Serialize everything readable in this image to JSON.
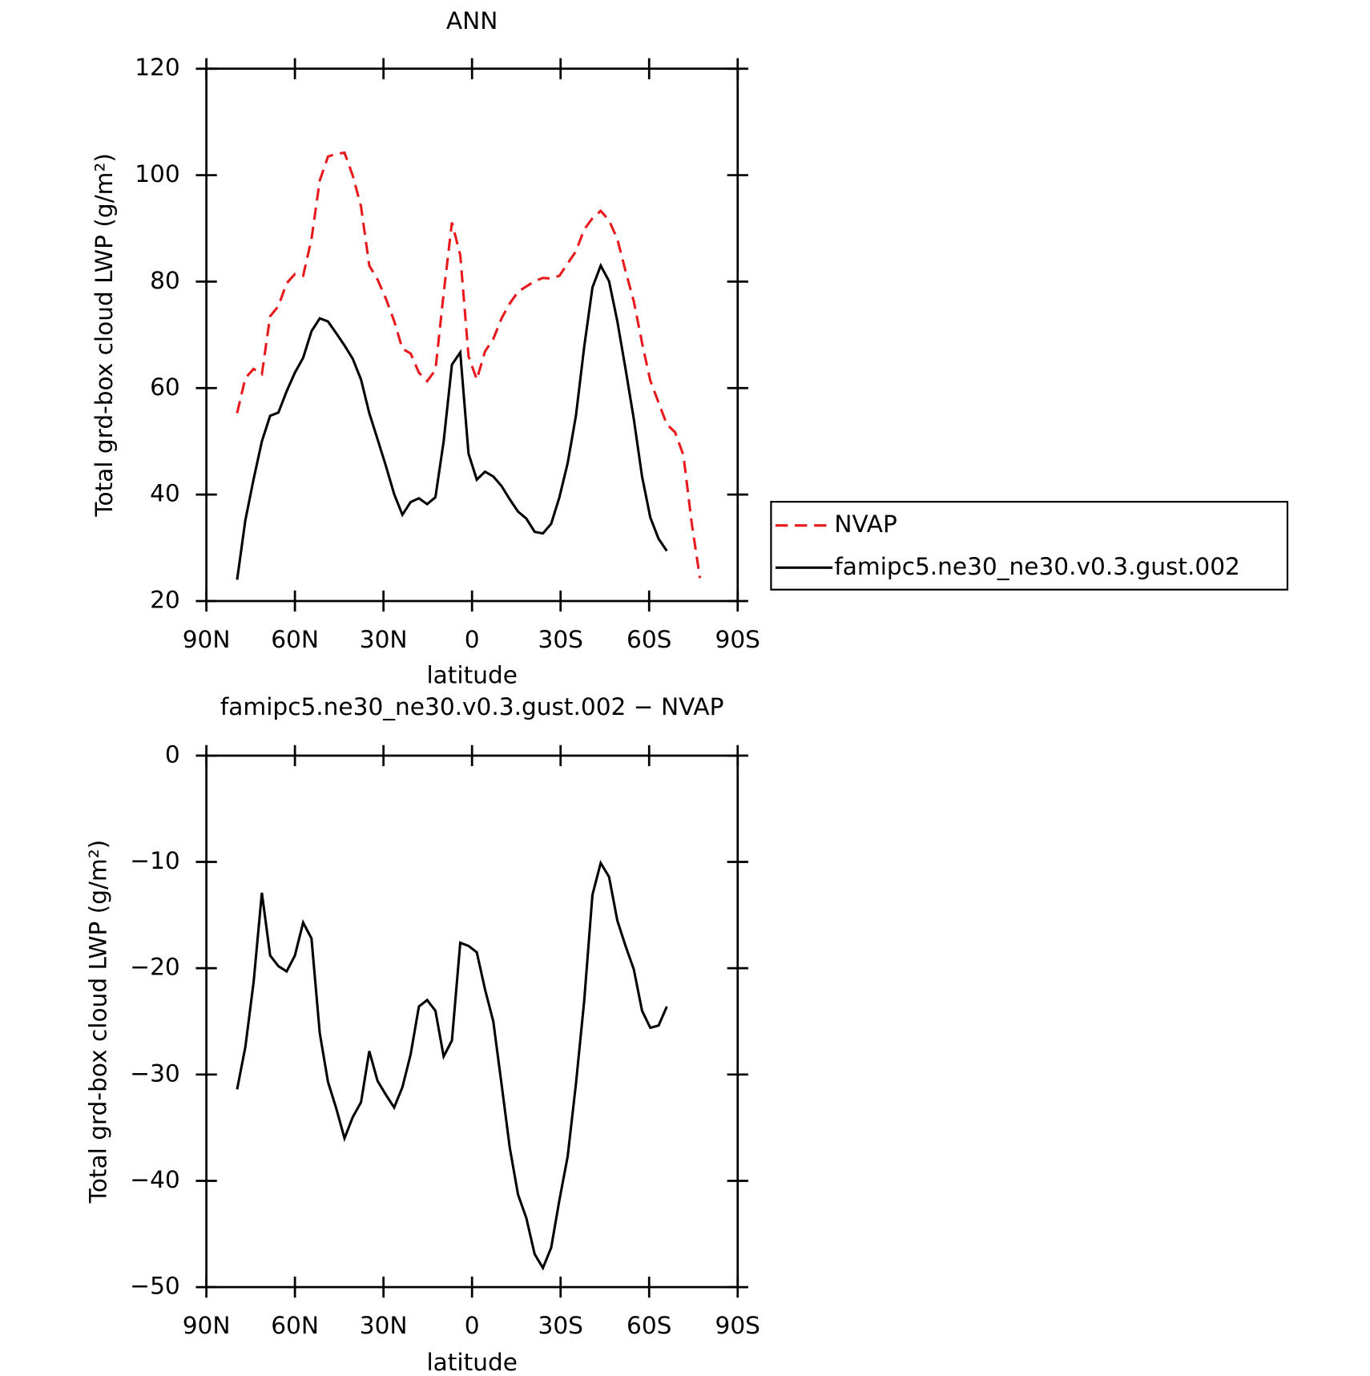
{
  "chart_data": [
    {
      "type": "line",
      "title": "ANN",
      "xlabel": "latitude",
      "ylabel": "Total grd-box cloud LWP (g/m²)",
      "xlim": [
        90,
        -90
      ],
      "xticks": [
        {
          "value": 90,
          "label": "90N"
        },
        {
          "value": 60,
          "label": "60N"
        },
        {
          "value": 30,
          "label": "30N"
        },
        0,
        {
          "value": -30,
          "label": "30S"
        },
        {
          "value": -60,
          "label": "60S"
        },
        {
          "value": -90,
          "label": "90S"
        }
      ],
      "ylim": [
        20,
        120
      ],
      "yticks": [
        20,
        40,
        60,
        80,
        100,
        120
      ],
      "legend": "right",
      "x": [
        79.6,
        76.8,
        74.0,
        71.2,
        68.4,
        65.6,
        62.8,
        60.0,
        57.2,
        54.4,
        51.6,
        48.8,
        46.0,
        43.2,
        40.4,
        37.6,
        34.8,
        32.0,
        29.2,
        26.4,
        23.6,
        20.8,
        18.0,
        15.2,
        12.4,
        9.6,
        6.8,
        4.0,
        1.2,
        -1.6,
        -4.4,
        -7.2,
        -10.0,
        -12.8,
        -15.6,
        -18.4,
        -21.2,
        -24.0,
        -26.8,
        -29.6,
        -32.4,
        -35.2,
        -38.0,
        -40.8,
        -43.6,
        -46.4,
        -49.2,
        -52.0,
        -54.8,
        -57.6,
        -60.4,
        -63.2,
        -66.0,
        -68.8,
        -71.6,
        -74.4,
        -77.2
      ],
      "series": [
        {
          "name": "NVAP",
          "color": "#e8191c",
          "linestyle": "dashed",
          "values": [
            55.3,
            61.9,
            63.6,
            62.6,
            73.5,
            75.4,
            79.7,
            81.4,
            81.1,
            88.0,
            99.0,
            103.5,
            104.0,
            104.2,
            99.9,
            94.1,
            83.0,
            80.4,
            76.8,
            72.6,
            67.4,
            66.5,
            62.9,
            61.3,
            63.4,
            77.8,
            91.1,
            85.0,
            66.0,
            61.6,
            66.9,
            69.2,
            73.1,
            75.9,
            78.1,
            79.1,
            80.1,
            80.7,
            80.6,
            81.1,
            83.4,
            85.7,
            89.8,
            91.9,
            93.3,
            91.5,
            88.0,
            82.0,
            76.3,
            68.5,
            61.4,
            57.3,
            53.2,
            51.7,
            47.4,
            34.7,
            24.3
          ]
        },
        {
          "name": "famipc5.ne30_ne30.v0.3.gust.002",
          "color": "#000000",
          "linestyle": "solid",
          "values": [
            24.0,
            35.2,
            42.9,
            50.0,
            54.8,
            55.4,
            59.4,
            62.9,
            65.7,
            70.7,
            73.1,
            72.5,
            70.3,
            68.0,
            65.5,
            61.6,
            55.3,
            50.4,
            45.4,
            40.1,
            36.2,
            38.6,
            39.3,
            38.2,
            39.5,
            50.0,
            64.4,
            66.7,
            47.7,
            42.8,
            44.3,
            43.4,
            41.6,
            39.1,
            36.8,
            35.5,
            33.0,
            32.7,
            34.5,
            39.5,
            45.9,
            54.8,
            67.7,
            78.9,
            83.0,
            80.1,
            72.6,
            63.6,
            54.2,
            43.4,
            35.7,
            31.7,
            29.4,
            null,
            null,
            null,
            null
          ]
        }
      ]
    },
    {
      "type": "line",
      "title": "famipc5.ne30_ne30.v0.3.gust.002 − NVAP",
      "xlabel": "latitude",
      "ylabel": "Total grd-box cloud LWP (g/m²)",
      "xlim": [
        90,
        -90
      ],
      "xticks": [
        {
          "value": 90,
          "label": "90N"
        },
        {
          "value": 60,
          "label": "60N"
        },
        {
          "value": 30,
          "label": "30N"
        },
        0,
        {
          "value": -30,
          "label": "30S"
        },
        {
          "value": -60,
          "label": "60S"
        },
        {
          "value": -90,
          "label": "90S"
        }
      ],
      "ylim": [
        -50,
        0
      ],
      "yticks": [
        {
          "value": -50,
          "label": "−50"
        },
        {
          "value": -40,
          "label": "−40"
        },
        {
          "value": -30,
          "label": "−30"
        },
        {
          "value": -20,
          "label": "−20"
        },
        {
          "value": -10,
          "label": "−10"
        },
        0
      ],
      "x": [
        79.6,
        76.8,
        74.0,
        71.2,
        68.4,
        65.6,
        62.8,
        60.0,
        57.2,
        54.4,
        51.6,
        48.8,
        46.0,
        43.2,
        40.4,
        37.6,
        34.8,
        32.0,
        29.2,
        26.4,
        23.6,
        20.8,
        18.0,
        15.2,
        12.4,
        9.6,
        6.8,
        4.0,
        1.2,
        -1.6,
        -4.4,
        -7.2,
        -10.0,
        -12.8,
        -15.6,
        -18.4,
        -21.2,
        -24.0,
        -26.8,
        -29.6,
        -32.4,
        -35.2,
        -38.0,
        -40.8,
        -43.6,
        -46.4,
        -49.2,
        -52.0,
        -54.8,
        -57.6,
        -60.4,
        -63.2,
        -66.0
      ],
      "series": [
        {
          "color": "#000000",
          "linestyle": "solid",
          "values": [
            -31.4,
            -27.4,
            -21.3,
            -12.9,
            -18.8,
            -19.8,
            -20.3,
            -18.8,
            -15.7,
            -17.2,
            -26.1,
            -30.7,
            -33.2,
            -36.0,
            -34.0,
            -32.6,
            -27.8,
            -30.6,
            -31.9,
            -33.1,
            -31.2,
            -28.1,
            -23.6,
            -23.0,
            -24.0,
            -28.3,
            -26.8,
            -17.6,
            -17.9,
            -18.5,
            -22.0,
            -25.0,
            -30.9,
            -36.9,
            -41.3,
            -43.5,
            -46.9,
            -48.2,
            -46.3,
            -41.8,
            -37.7,
            -30.9,
            -23.1,
            -13.1,
            -10.1,
            -11.4,
            -15.5,
            -17.9,
            -20.1,
            -24.0,
            -25.6,
            -25.4,
            -23.6
          ]
        }
      ]
    }
  ]
}
